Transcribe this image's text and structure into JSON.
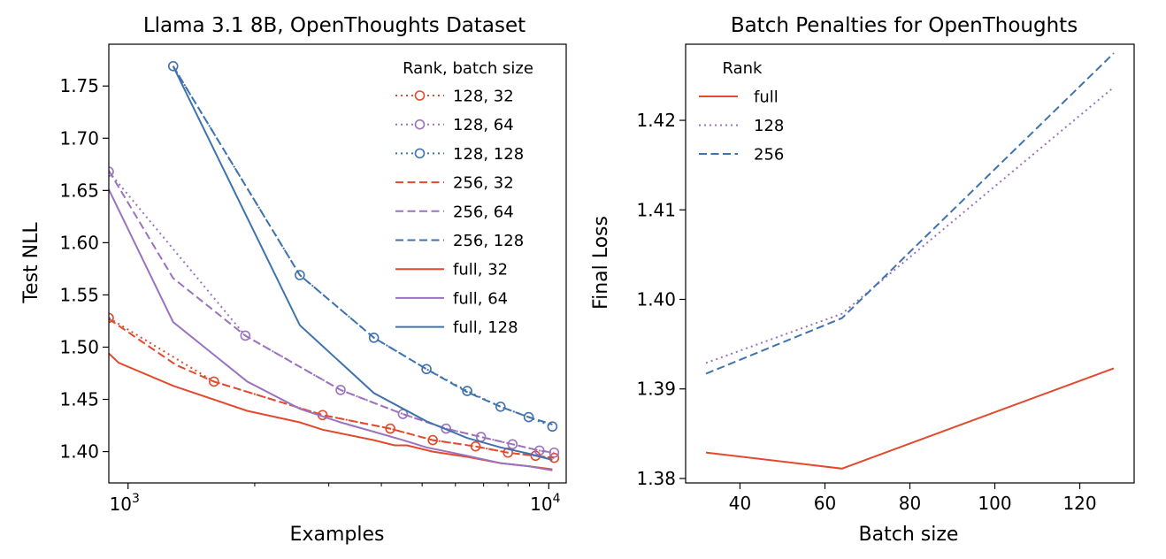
{
  "chart_data": [
    {
      "type": "line",
      "title": "Llama 3.1 8B, OpenThoughts Dataset",
      "xlabel": "Examples",
      "ylabel": "Test NLL",
      "xscale": "log",
      "xlim": [
        900,
        11000
      ],
      "ylim": [
        1.37,
        1.79
      ],
      "xticks": [
        {
          "value": 1000,
          "base": "10",
          "exp": "3"
        },
        {
          "value": 10000,
          "base": "10",
          "exp": "4"
        }
      ],
      "yticks": [
        "1.40",
        "1.45",
        "1.50",
        "1.55",
        "1.60",
        "1.65",
        "1.70",
        "1.75"
      ],
      "legend": {
        "title": "Rank, batch size",
        "loc": "upper right"
      },
      "series": [
        {
          "name": "128, 32",
          "color": "#e24a2e",
          "dash": "dot",
          "marker": true,
          "x": [
            900,
            1600,
            2900,
            4200,
            5300,
            6700,
            8000,
            9300,
            10300
          ],
          "y": [
            1.528,
            1.467,
            1.435,
            1.422,
            1.411,
            1.405,
            1.399,
            1.396,
            1.394
          ]
        },
        {
          "name": "128, 64",
          "color": "#9a72be",
          "dash": "dot",
          "marker": true,
          "x": [
            900,
            1900,
            3200,
            4500,
            5700,
            6900,
            8200,
            9500,
            10300
          ],
          "y": [
            1.668,
            1.511,
            1.459,
            1.436,
            1.422,
            1.414,
            1.407,
            1.401,
            1.399
          ]
        },
        {
          "name": "128, 128",
          "color": "#3f73ad",
          "dash": "dot",
          "marker": true,
          "x": [
            1280,
            2560,
            3840,
            5120,
            6400,
            7680,
            8960,
            10200
          ],
          "y": [
            1.769,
            1.569,
            1.509,
            1.479,
            1.458,
            1.443,
            1.433,
            1.424
          ]
        },
        {
          "name": "256, 32",
          "color": "#e24a2e",
          "dash": "dash",
          "marker": false,
          "x": [
            900,
            1300,
            1600,
            2900,
            4200,
            5300,
            6700,
            8000,
            9300,
            10300
          ],
          "y": [
            1.527,
            1.483,
            1.467,
            1.435,
            1.422,
            1.411,
            1.405,
            1.399,
            1.396,
            1.394
          ]
        },
        {
          "name": "256, 64",
          "color": "#9a72be",
          "dash": "dash",
          "marker": false,
          "x": [
            900,
            1280,
            1900,
            3200,
            4500,
            5700,
            6900,
            8200,
            9500,
            10300
          ],
          "y": [
            1.669,
            1.566,
            1.511,
            1.459,
            1.436,
            1.422,
            1.414,
            1.407,
            1.401,
            1.399
          ]
        },
        {
          "name": "256, 128",
          "color": "#3f73ad",
          "dash": "dash",
          "marker": false,
          "x": [
            1280,
            2560,
            3840,
            5120,
            6400,
            7680,
            8960,
            10200
          ],
          "y": [
            1.769,
            1.569,
            1.509,
            1.479,
            1.457,
            1.443,
            1.433,
            1.426
          ]
        },
        {
          "name": "full, 32",
          "color": "#e24a2e",
          "dash": "solid",
          "marker": false,
          "x": [
            900,
            950,
            1280,
            1920,
            2560,
            2900,
            3840,
            4300,
            4600,
            5300,
            6400,
            7680,
            8960,
            10200
          ],
          "y": [
            1.494,
            1.485,
            1.463,
            1.439,
            1.428,
            1.421,
            1.411,
            1.406,
            1.406,
            1.4,
            1.395,
            1.389,
            1.386,
            1.383
          ]
        },
        {
          "name": "full, 64",
          "color": "#9a72be",
          "dash": "solid",
          "marker": false,
          "x": [
            900,
            1280,
            1920,
            2560,
            3200,
            3840,
            4500,
            5120,
            6400,
            7680,
            8960,
            10200
          ],
          "y": [
            1.651,
            1.524,
            1.467,
            1.441,
            1.428,
            1.419,
            1.411,
            1.404,
            1.396,
            1.389,
            1.386,
            1.382
          ]
        },
        {
          "name": "full, 128",
          "color": "#3f73ad",
          "dash": "solid",
          "marker": false,
          "x": [
            1280,
            2560,
            3840,
            5120,
            6400,
            7680,
            8960,
            10200
          ],
          "y": [
            1.769,
            1.521,
            1.456,
            1.429,
            1.413,
            1.404,
            1.398,
            1.392
          ]
        }
      ]
    },
    {
      "type": "line",
      "title": "Batch Penalties for OpenThoughts",
      "xlabel": "Batch size",
      "ylabel": "Final Loss",
      "xlim": [
        27.2,
        132.8
      ],
      "ylim": [
        1.3795,
        1.4285
      ],
      "xticks": [
        "40",
        "60",
        "80",
        "100",
        "120"
      ],
      "yticks": [
        "1.38",
        "1.39",
        "1.40",
        "1.41",
        "1.42"
      ],
      "legend": {
        "title": "Rank",
        "loc": "upper left"
      },
      "series": [
        {
          "name": "full",
          "color": "#e24a2e",
          "dash": "solid",
          "x": [
            32,
            64,
            128
          ],
          "y": [
            1.3829,
            1.3811,
            1.3923
          ]
        },
        {
          "name": "128",
          "color": "#9a72be",
          "dash": "dot",
          "x": [
            32,
            64,
            128
          ],
          "y": [
            1.3929,
            1.3984,
            1.4237
          ]
        },
        {
          "name": "256",
          "color": "#3f73ad",
          "dash": "dash",
          "x": [
            32,
            64,
            128
          ],
          "y": [
            1.3917,
            1.3979,
            1.4275
          ]
        }
      ]
    }
  ]
}
